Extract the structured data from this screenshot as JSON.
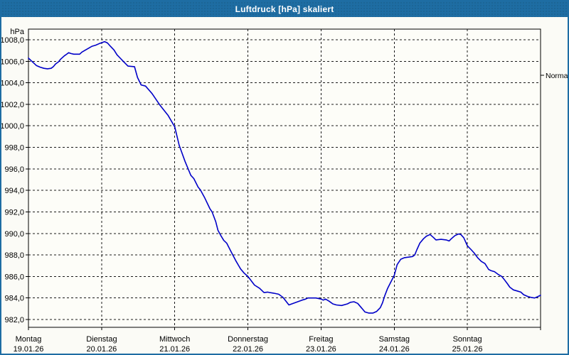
{
  "window": {
    "title": "Luftdruck [hPa] skaliert"
  },
  "colors": {
    "titlebar_bg": "#1e6da3",
    "titlebar_text": "#ffffff",
    "window_border": "#1e6da3",
    "window_bg": "#fbfbf6",
    "plot_bg": "#fdfdf8",
    "grid": "#1a1a1a",
    "axis": "#000000",
    "text": "#000000",
    "curve": "#0000c8"
  },
  "chart_data": {
    "type": "line",
    "title": "Luftdruck [hPa] skaliert",
    "unit_label": "hPa",
    "grid": true,
    "legend_position": "none",
    "y_axis": {
      "min": 982,
      "max": 1008,
      "tick_step": 2,
      "tick_values": [
        1008,
        1006,
        1004,
        1002,
        1000,
        998,
        996,
        994,
        992,
        990,
        988,
        986,
        984,
        982
      ],
      "tick_labels": [
        "1008,0",
        "1006,0",
        "1004,0",
        "1002,0",
        "1000,0",
        "998,0",
        "996,0",
        "994,0",
        "992,0",
        "990,0",
        "988,0",
        "986,0",
        "984,0",
        "982,0"
      ]
    },
    "x_axis": {
      "span_days": 7,
      "days": [
        {
          "name": "Montag",
          "date": "19.01.26"
        },
        {
          "name": "Dienstag",
          "date": "20.01.26"
        },
        {
          "name": "Mittwoch",
          "date": "21.01.26"
        },
        {
          "name": "Donnerstag",
          "date": "22.01.26"
        },
        {
          "name": "Freitag",
          "date": "23.01.26"
        },
        {
          "name": "Samstag",
          "date": "24.01.26"
        },
        {
          "name": "Sonntag",
          "date": "25.01.26"
        }
      ]
    },
    "reference": {
      "label": "Normal",
      "value": 1004.7
    },
    "series": [
      {
        "name": "Luftdruck [hPa]",
        "color": "#0000c8",
        "points": [
          [
            0,
            1006.3
          ],
          [
            0.03,
            1006.1
          ],
          [
            0.07,
            1005.85
          ],
          [
            0.11,
            1005.6
          ],
          [
            0.16,
            1005.45
          ],
          [
            0.21,
            1005.35
          ],
          [
            0.26,
            1005.3
          ],
          [
            0.31,
            1005.35
          ],
          [
            0.34,
            1005.5
          ],
          [
            0.37,
            1005.75
          ],
          [
            0.41,
            1005.95
          ],
          [
            0.44,
            1006.2
          ],
          [
            0.49,
            1006.5
          ],
          [
            0.52,
            1006.65
          ],
          [
            0.55,
            1006.8
          ],
          [
            0.58,
            1006.72
          ],
          [
            0.62,
            1006.66
          ],
          [
            0.7,
            1006.66
          ],
          [
            0.73,
            1006.85
          ],
          [
            0.78,
            1007.05
          ],
          [
            0.83,
            1007.25
          ],
          [
            0.87,
            1007.4
          ],
          [
            0.92,
            1007.5
          ],
          [
            0.97,
            1007.65
          ],
          [
            1,
            1007.72
          ],
          [
            1.04,
            1007.83
          ],
          [
            1.08,
            1007.7
          ],
          [
            1.12,
            1007.4
          ],
          [
            1.17,
            1007.05
          ],
          [
            1.21,
            1006.6
          ],
          [
            1.26,
            1006.25
          ],
          [
            1.31,
            1005.9
          ],
          [
            1.36,
            1005.55
          ],
          [
            1.45,
            1005.5
          ],
          [
            1.49,
            1004.5
          ],
          [
            1.54,
            1003.8
          ],
          [
            1.6,
            1003.7
          ],
          [
            1.69,
            1003
          ],
          [
            1.8,
            1001.9
          ],
          [
            1.91,
            1000.95
          ],
          [
            2,
            999.9
          ],
          [
            2.06,
            998.2
          ],
          [
            2.14,
            996.7
          ],
          [
            2.22,
            995.4
          ],
          [
            2.26,
            995.1
          ],
          [
            2.32,
            994.3
          ],
          [
            2.35,
            994.05
          ],
          [
            2.41,
            993.3
          ],
          [
            2.48,
            992.3
          ],
          [
            2.51,
            992
          ],
          [
            2.56,
            991.1
          ],
          [
            2.59,
            990.3
          ],
          [
            2.63,
            989.8
          ],
          [
            2.67,
            989.35
          ],
          [
            2.71,
            989.1
          ],
          [
            2.77,
            988.3
          ],
          [
            2.84,
            987.4
          ],
          [
            2.87,
            987.05
          ],
          [
            2.9,
            986.7
          ],
          [
            2.95,
            986.3
          ],
          [
            3,
            986
          ],
          [
            3.09,
            985.2
          ],
          [
            3.16,
            984.9
          ],
          [
            3.22,
            984.5
          ],
          [
            3.27,
            984.55
          ],
          [
            3.3,
            984.5
          ],
          [
            3.35,
            984.45
          ],
          [
            3.42,
            984.35
          ],
          [
            3.48,
            984.05
          ],
          [
            3.56,
            983.35
          ],
          [
            3.64,
            983.55
          ],
          [
            3.74,
            983.8
          ],
          [
            3.79,
            983.9
          ],
          [
            3.82,
            984
          ],
          [
            3.93,
            984
          ],
          [
            4,
            983.9
          ],
          [
            4.03,
            983.8
          ],
          [
            4.06,
            983.9
          ],
          [
            4.11,
            983.7
          ],
          [
            4.16,
            983.45
          ],
          [
            4.21,
            983.35
          ],
          [
            4.28,
            983.3
          ],
          [
            4.36,
            983.45
          ],
          [
            4.4,
            983.6
          ],
          [
            4.45,
            983.65
          ],
          [
            4.5,
            983.5
          ],
          [
            4.55,
            983.1
          ],
          [
            4.6,
            982.7
          ],
          [
            4.65,
            982.6
          ],
          [
            4.71,
            982.6
          ],
          [
            4.76,
            982.75
          ],
          [
            4.81,
            983.1
          ],
          [
            4.84,
            983.55
          ],
          [
            4.87,
            984.2
          ],
          [
            4.91,
            984.9
          ],
          [
            4.94,
            985.3
          ],
          [
            5,
            986.1
          ],
          [
            5.04,
            987.1
          ],
          [
            5.09,
            987.6
          ],
          [
            5.14,
            987.75
          ],
          [
            5.2,
            987.8
          ],
          [
            5.25,
            987.85
          ],
          [
            5.28,
            988
          ],
          [
            5.31,
            988.5
          ],
          [
            5.35,
            989.1
          ],
          [
            5.4,
            989.5
          ],
          [
            5.44,
            989.75
          ],
          [
            5.49,
            989.9
          ],
          [
            5.54,
            989.6
          ],
          [
            5.57,
            989.4
          ],
          [
            5.64,
            989.45
          ],
          [
            5.71,
            989.4
          ],
          [
            5.75,
            989.3
          ],
          [
            5.78,
            989.5
          ],
          [
            5.83,
            989.8
          ],
          [
            5.88,
            989.95
          ],
          [
            5.91,
            989.9
          ],
          [
            5.95,
            989.6
          ],
          [
            5.98,
            989.15
          ],
          [
            6,
            988.85
          ],
          [
            6.05,
            988.5
          ],
          [
            6.09,
            988.2
          ],
          [
            6.14,
            987.75
          ],
          [
            6.19,
            987.4
          ],
          [
            6.24,
            987.2
          ],
          [
            6.29,
            986.65
          ],
          [
            6.32,
            986.55
          ],
          [
            6.37,
            986.45
          ],
          [
            6.42,
            986.2
          ],
          [
            6.47,
            986
          ],
          [
            6.5,
            985.75
          ],
          [
            6.55,
            985.3
          ],
          [
            6.58,
            985
          ],
          [
            6.63,
            984.75
          ],
          [
            6.68,
            984.65
          ],
          [
            6.73,
            984.55
          ],
          [
            6.77,
            984.3
          ],
          [
            6.82,
            984.15
          ],
          [
            6.87,
            984.05
          ],
          [
            6.92,
            984
          ],
          [
            6.97,
            984.15
          ],
          [
            7,
            984.25
          ]
        ]
      }
    ]
  }
}
